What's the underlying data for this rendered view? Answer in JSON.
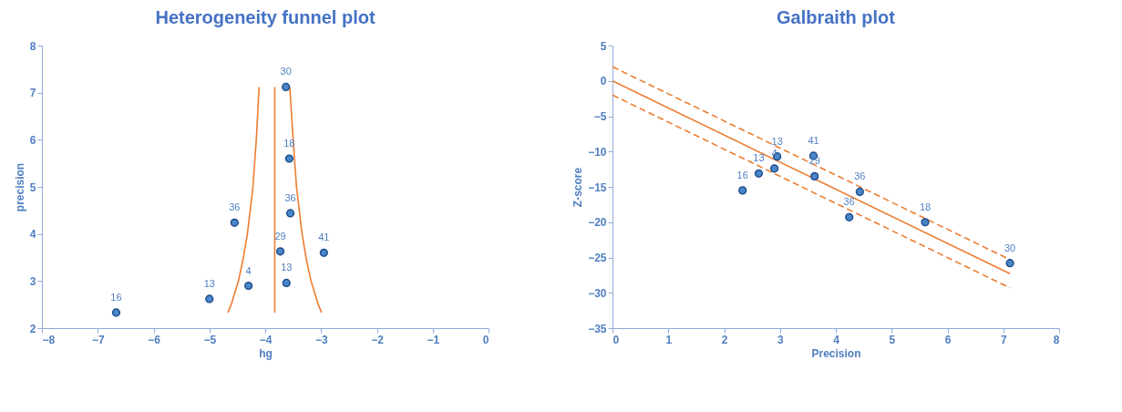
{
  "chart_data": [
    {
      "type": "scatter",
      "title": "Heterogeneity funnel plot",
      "xlabel": "hg",
      "ylabel": "precision",
      "xlim": [
        -8,
        0
      ],
      "xticks": [
        -8,
        -7,
        -6,
        -5,
        -4,
        -3,
        -2,
        -1,
        0
      ],
      "ylim": [
        2,
        8
      ],
      "yticks": [
        2,
        3,
        4,
        5,
        6,
        7,
        8
      ],
      "grid": false,
      "series": [
        {
          "type": "line",
          "color": "#ed7d31",
          "line_style": "solid",
          "marker": "none",
          "x": [
            -4.67,
            -4.61,
            -4.48,
            -4.39,
            -4.32,
            -4.27,
            -4.22,
            -4.16,
            -4.11
          ],
          "values": [
            2.33,
            2.5,
            3,
            3.5,
            4,
            4.5,
            5,
            6,
            7.12
          ]
        },
        {
          "type": "line",
          "color": "#ed7d31",
          "line_style": "solid",
          "marker": "none",
          "x": [
            -3.83,
            -3.83
          ],
          "values": [
            2.33,
            7.12
          ]
        },
        {
          "type": "line",
          "color": "#ed7d31",
          "line_style": "solid",
          "marker": "none",
          "x": [
            -2.99,
            -3.05,
            -3.18,
            -3.27,
            -3.34,
            -3.39,
            -3.44,
            -3.5,
            -3.56
          ],
          "values": [
            2.33,
            2.5,
            3,
            3.5,
            4,
            4.5,
            5,
            6,
            7.12
          ]
        },
        {
          "color": "#4a86c8",
          "marker": "circle",
          "x": [
            -6.67,
            -5.0,
            -4.3,
            -4.55,
            -3.73,
            -3.62,
            -3.55,
            -3.57,
            -3.63,
            -2.95
          ],
          "values": [
            2.33,
            2.62,
            2.9,
            4.24,
            3.63,
            2.96,
            4.44,
            5.6,
            7.12,
            3.6
          ]
        }
      ],
      "annotations": [
        {
          "text": "16",
          "x": -6.67,
          "y": 2.33
        },
        {
          "text": "13",
          "x": -5.0,
          "y": 2.62
        },
        {
          "text": "4",
          "x": -4.3,
          "y": 2.9
        },
        {
          "text": "36",
          "x": -4.55,
          "y": 4.24
        },
        {
          "text": "29",
          "x": -3.73,
          "y": 3.63
        },
        {
          "text": "13",
          "x": -3.62,
          "y": 2.96
        },
        {
          "text": "36",
          "x": -3.55,
          "y": 4.44
        },
        {
          "text": "18",
          "x": -3.57,
          "y": 5.6
        },
        {
          "text": "30",
          "x": -3.63,
          "y": 7.12
        },
        {
          "text": "41",
          "x": -2.95,
          "y": 3.6
        }
      ]
    },
    {
      "type": "scatter",
      "title": "Galbraith plot",
      "xlabel": "Precision",
      "ylabel": "Z-score",
      "xlim": [
        0,
        8
      ],
      "xticks": [
        0,
        1,
        2,
        3,
        4,
        5,
        6,
        7,
        8
      ],
      "ylim": [
        -35,
        5
      ],
      "yticks": [
        -35,
        -30,
        -25,
        -20,
        -15,
        -10,
        -5,
        0,
        5
      ],
      "grid": false,
      "series": [
        {
          "type": "line",
          "color": "#ed7d31",
          "line_style": "dashed",
          "marker": "none",
          "x": [
            0,
            7.12
          ],
          "values": [
            2,
            -25.3
          ]
        },
        {
          "type": "line",
          "color": "#ed7d31",
          "line_style": "solid",
          "marker": "none",
          "x": [
            0,
            7.12
          ],
          "values": [
            0,
            -27.3
          ]
        },
        {
          "type": "line",
          "color": "#ed7d31",
          "line_style": "dashed",
          "marker": "none",
          "x": [
            0,
            7.12
          ],
          "values": [
            -2,
            -29.3
          ]
        },
        {
          "color": "#4a86c8",
          "marker": "circle",
          "x": [
            2.33,
            2.62,
            2.9,
            2.95,
            3.6,
            3.62,
            4.24,
            4.43,
            5.6,
            7.12
          ],
          "values": [
            -15.5,
            -13.1,
            -12.4,
            -10.7,
            -10.6,
            -13.5,
            -19.3,
            -15.7,
            -20,
            -25.8
          ]
        }
      ],
      "annotations": [
        {
          "text": "16",
          "x": 2.33,
          "y": -15.5
        },
        {
          "text": "13",
          "x": 2.62,
          "y": -13.1
        },
        {
          "text": "4",
          "x": 2.9,
          "y": -12.4
        },
        {
          "text": "13",
          "x": 2.95,
          "y": -10.7
        },
        {
          "text": "41",
          "x": 3.6,
          "y": -10.6
        },
        {
          "text": "29",
          "x": 3.62,
          "y": -13.5
        },
        {
          "text": "36",
          "x": 4.24,
          "y": -19.3
        },
        {
          "text": "36",
          "x": 4.43,
          "y": -15.7
        },
        {
          "text": "18",
          "x": 5.6,
          "y": -20
        },
        {
          "text": "30",
          "x": 7.12,
          "y": -25.8
        }
      ]
    }
  ]
}
